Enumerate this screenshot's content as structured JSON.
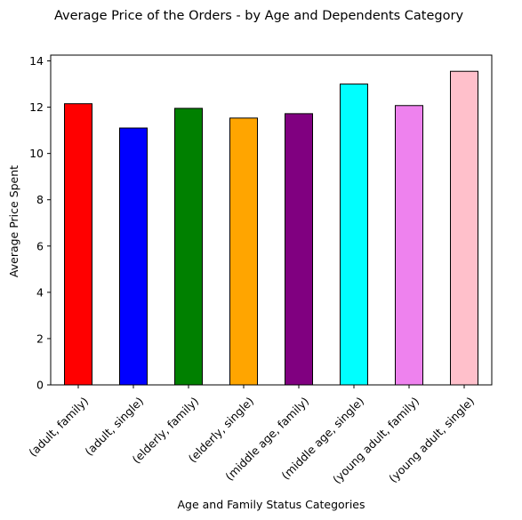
{
  "chart_data": {
    "type": "bar",
    "title": "Average Price of the Orders - by Age and Dependents Category",
    "xlabel": "Age and Family Status Categories",
    "ylabel": "Average Price Spent",
    "categories": [
      "(adult, family)",
      "(adult, single)",
      "(elderly, family)",
      "(elderly, single)",
      "(middle age, family)",
      "(middle age, single)",
      "(young adult, family)",
      "(young adult, single)"
    ],
    "values": [
      12.15,
      11.1,
      11.95,
      11.53,
      11.72,
      13.0,
      12.07,
      13.55
    ],
    "colors": [
      "#ff0000",
      "#0000ff",
      "#008000",
      "#ffa500",
      "#800080",
      "#00ffff",
      "#ee82ee",
      "#ffc0cb"
    ],
    "ylim": [
      0,
      14.25
    ],
    "yticks": [
      0,
      2,
      4,
      6,
      8,
      10,
      12,
      14
    ],
    "grid": false,
    "legend": "none"
  }
}
